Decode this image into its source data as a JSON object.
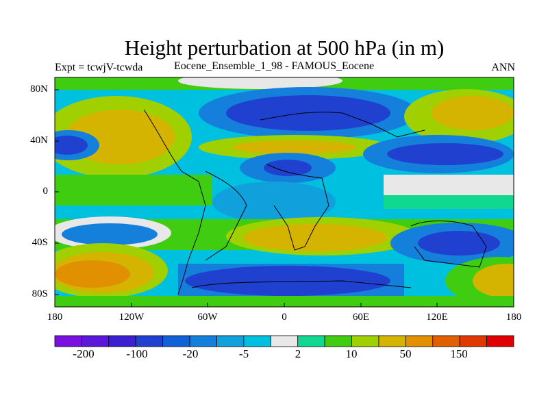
{
  "title": "Height perturbation at 500 hPa (in m)",
  "subtitle_left": "Expt = tcwjV-tcwda",
  "subtitle_center": "Eocene_Ensemble_1_98 - FAMOUS_Eocene",
  "subtitle_right": "ANN",
  "lat_labels": [
    "80N",
    "40N",
    "0",
    "40S",
    "80S"
  ],
  "lon_labels": [
    "180",
    "120W",
    "60W",
    "0",
    "60E",
    "120E",
    "180"
  ],
  "colorbar": {
    "labels": [
      "-200",
      "-100",
      "-20",
      "-5",
      "2",
      "10",
      "50",
      "150"
    ],
    "colors": [
      "#7a10e0",
      "#5b18d8",
      "#3a20d0",
      "#2040d0",
      "#1060d8",
      "#1480dc",
      "#10a0dc",
      "#00c0e0",
      "#e8e8e8",
      "#10d890",
      "#40cc10",
      "#a0d000",
      "#d4b400",
      "#e09000",
      "#e06000",
      "#e03800",
      "#e00000"
    ]
  },
  "map_colors": {
    "ocean_neutral": "#e8e8e8",
    "deep_blue": "#2040d0",
    "mid_blue": "#1480dc",
    "light_blue": "#00c0e0",
    "green": "#40cc10",
    "yellow_green": "#a0d000",
    "yellow": "#d4b400",
    "orange": "#e09000"
  }
}
